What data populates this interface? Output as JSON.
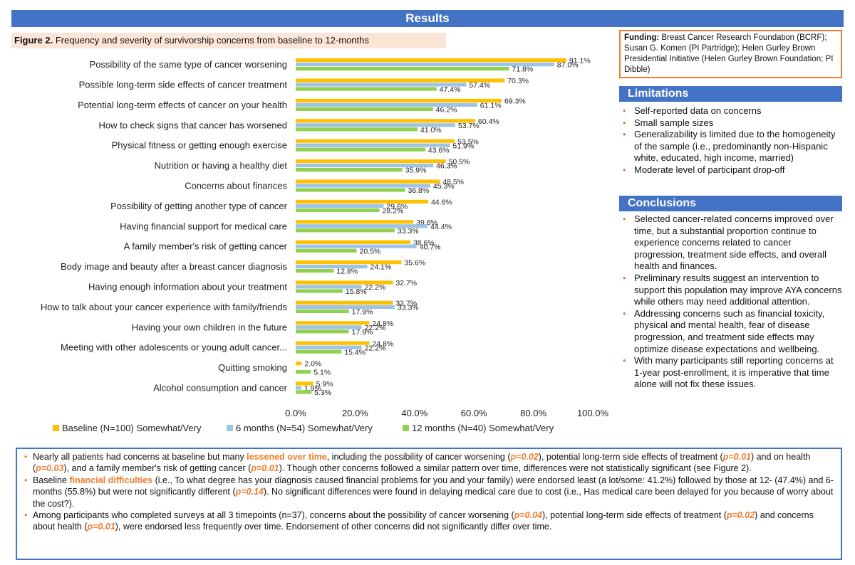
{
  "header": {
    "title": "Results"
  },
  "figure": {
    "label": "Figure 2.",
    "caption": "Frequency and severity of survivorship concerns from baseline to 12-months"
  },
  "chart_data": {
    "type": "bar",
    "orientation": "horizontal",
    "categories": [
      "Possibility of the same type of cancer worsening",
      "Possible long-term side effects of cancer treatment",
      "Potential long-term effects of cancer on your health",
      "How to check signs that cancer has worsened",
      "Physical fitness or getting enough exercise",
      "Nutrition or having a healthy diet",
      "Concerns about finances",
      "Possibility of getting another type of cancer",
      "Having financial support for medical care",
      "A family member's risk of getting cancer",
      "Body image and beauty after a breast cancer diagnosis",
      "Having enough information about your treatment",
      "How to talk about your cancer experience with family/friends",
      "Having your own children in the future",
      "Meeting with other adolescents or young adult cancer...",
      "Quitting smoking",
      "Alcohol consumption and cancer"
    ],
    "series": [
      {
        "name": "Baseline (N=100) Somewhat/Very",
        "color": "#ffc000",
        "values": [
          91.1,
          70.3,
          69.3,
          60.4,
          53.5,
          50.5,
          48.5,
          44.6,
          39.6,
          38.6,
          35.6,
          32.7,
          32.7,
          24.8,
          24.8,
          2.0,
          5.9
        ],
        "labels": [
          "91.1%",
          "70.3%",
          "69.3%",
          "60.4%",
          "53.5%",
          "50.5%",
          "48.5%",
          "44.6%",
          "39.6%",
          "38.6%",
          "35.6%",
          "32.7%",
          "32.7%",
          "24.8%",
          "24.8%",
          "2.0%",
          "5.9%"
        ]
      },
      {
        "name": "6 months (N=54) Somewhat/Very",
        "color": "#9dc3e6",
        "values": [
          87.0,
          57.4,
          61.1,
          53.7,
          51.9,
          46.3,
          45.3,
          29.6,
          44.4,
          40.7,
          24.1,
          22.2,
          33.3,
          22.2,
          22.2,
          0,
          1.9
        ],
        "labels": [
          "87.0%",
          "57.4%",
          "61.1%",
          "53.7%",
          "51.9%",
          "46.3%",
          "45.3%",
          "29.6%",
          "44.4%",
          "40.7%",
          "24.1%",
          "22.2%",
          "33.3%",
          "22.2%",
          "22.2%",
          "",
          "1.9%"
        ]
      },
      {
        "name": "12 months (N=40) Somewhat/Very",
        "color": "#92d050",
        "values": [
          71.8,
          47.4,
          46.2,
          41.0,
          43.6,
          35.9,
          36.8,
          28.2,
          33.3,
          20.5,
          12.8,
          15.8,
          17.9,
          17.9,
          15.4,
          5.1,
          5.3
        ],
        "labels": [
          "71.8%",
          "47.4%",
          "46.2%",
          "41.0%",
          "43.6%",
          "35.9%",
          "36.8%",
          "28.2%",
          "33.3%",
          "20.5%",
          "12.8%",
          "15.8%",
          "17.9%",
          "17.9%",
          "15.4%",
          "5.1%",
          "5.3%"
        ]
      }
    ],
    "xlim": [
      0,
      100
    ],
    "xticks": [
      "0.0%",
      "20.0%",
      "40.0%",
      "60.0%",
      "80.0%",
      "100.0%"
    ],
    "legend_position": "bottom",
    "grid": false
  },
  "funding": {
    "label": "Funding:",
    "text": "Breast Cancer Research Foundation (BCRF); Susan G. Komen (PI Partridge); Helen Gurley Brown Presidential Initiative (Helen Gurley Brown Foundation; PI Dibble)"
  },
  "limitations": {
    "title": "Limitations",
    "items": [
      "Self-reported data on concerns",
      "Small sample sizes",
      "Generalizability is limited due to the homogeneity of the sample (i.e., predominantly non-Hispanic white, educated, high income, married)",
      "Moderate level of participant drop-off"
    ]
  },
  "conclusions": {
    "title": "Conclusions",
    "items": [
      "Selected cancer-related concerns improved over time, but a substantial proportion continue to experience concerns related to cancer progression, treatment side effects, and overall health and finances.",
      "Preliminary results suggest an intervention to support this population may improve AYA concerns while others may need additional attention.",
      "Addressing concerns such as financial toxicity, physical and mental health, fear of disease progression, and treatment side effects may optimize disease expectations and wellbeing.",
      "With many participants still reporting concerns at 1-year post-enrollment, it is imperative that time alone will not fix these issues."
    ]
  },
  "findings": {
    "b1": {
      "t1": "Nearly all patients had concerns at baseline but many ",
      "h1": "lessened over time",
      "t2": ", including the possibility of cancer worsening (",
      "p1": "p=0.02",
      "t3": "), potential long-term side effects of treatment (",
      "p2": "p=0.01",
      "t4": ") and on health (",
      "p3": "p=0.03",
      "t5": "), and a family member's risk of getting cancer (",
      "p4": "p=0.01",
      "t6": "). Though other concerns followed a similar pattern over time, differences were not statistically significant (see Figure 2)."
    },
    "b2": {
      "t1": "Baseline ",
      "h1": "financial difficulties",
      "t2": " (i.e., To what degree has your diagnosis caused financial problems for you and your family) were endorsed least (a lot/some: 41.2%) followed by those at 12- (47.4%) and 6-months (55.8%) but were not significantly different (",
      "p1": "p=0.14",
      "t3": "). No significant differences were found in delaying medical care due to cost (i.e., Has medical care been delayed for you because of worry about the cost?)."
    },
    "b3": {
      "t1": "Among participants who completed surveys at all 3 timepoints (n=37), concerns about the possibility of cancer worsening (",
      "p1": "p=0.04",
      "t2": "), potential long-term side effects of treatment (",
      "p2": "p=0.02",
      "t3": ") and concerns about health (",
      "p3": "p=0.01",
      "t4": "), were endorsed less frequently over time. Endorsement of other concerns did not significantly differ over time."
    }
  }
}
